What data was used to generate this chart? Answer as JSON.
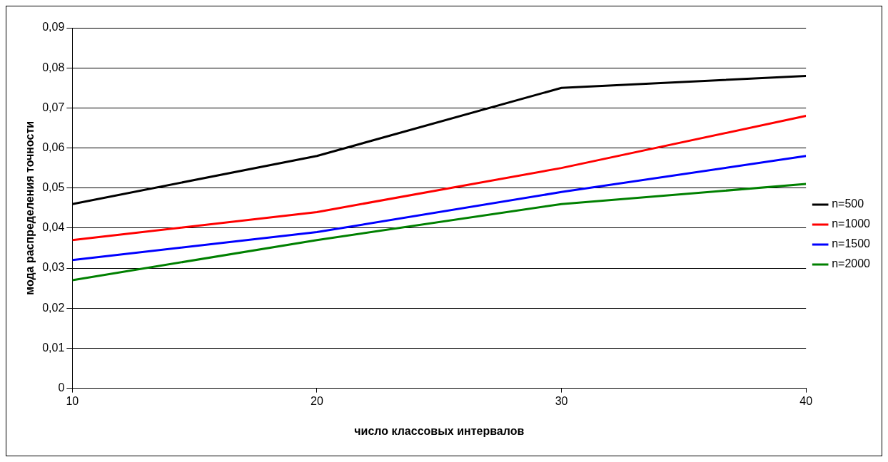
{
  "chart_data": {
    "type": "line",
    "xlabel": "число классовых интервалов",
    "ylabel": "мода распределения точности",
    "x": [
      10,
      20,
      30,
      40
    ],
    "series": [
      {
        "name": "n=500",
        "color": "#000000",
        "values": [
          0.046,
          0.058,
          0.075,
          0.078
        ]
      },
      {
        "name": "n=1000",
        "color": "#ff0000",
        "values": [
          0.037,
          0.044,
          0.055,
          0.068
        ]
      },
      {
        "name": "n=1500",
        "color": "#0000ff",
        "values": [
          0.032,
          0.039,
          0.049,
          0.058
        ]
      },
      {
        "name": "n=2000",
        "color": "#008000",
        "values": [
          0.027,
          0.037,
          0.046,
          0.051
        ]
      }
    ],
    "xlim": [
      10,
      40
    ],
    "xticks": [
      10,
      20,
      30,
      40
    ],
    "ylim": [
      0,
      0.09
    ],
    "yticks": [
      0,
      {
        "value": 0.01,
        "label": "0,01"
      },
      {
        "value": 0.02,
        "label": "0,02"
      },
      {
        "value": 0.03,
        "label": "0,03"
      },
      {
        "value": 0.04,
        "label": "0,04"
      },
      {
        "value": 0.05,
        "label": "0,05"
      },
      {
        "value": 0.06,
        "label": "0,06"
      },
      {
        "value": 0.07,
        "label": "0,07"
      },
      {
        "value": 0.08,
        "label": "0,08"
      },
      {
        "value": 0.09,
        "label": "0,09"
      }
    ],
    "grid": "y",
    "legend": "right",
    "marker": "none",
    "line_style": "solid"
  }
}
